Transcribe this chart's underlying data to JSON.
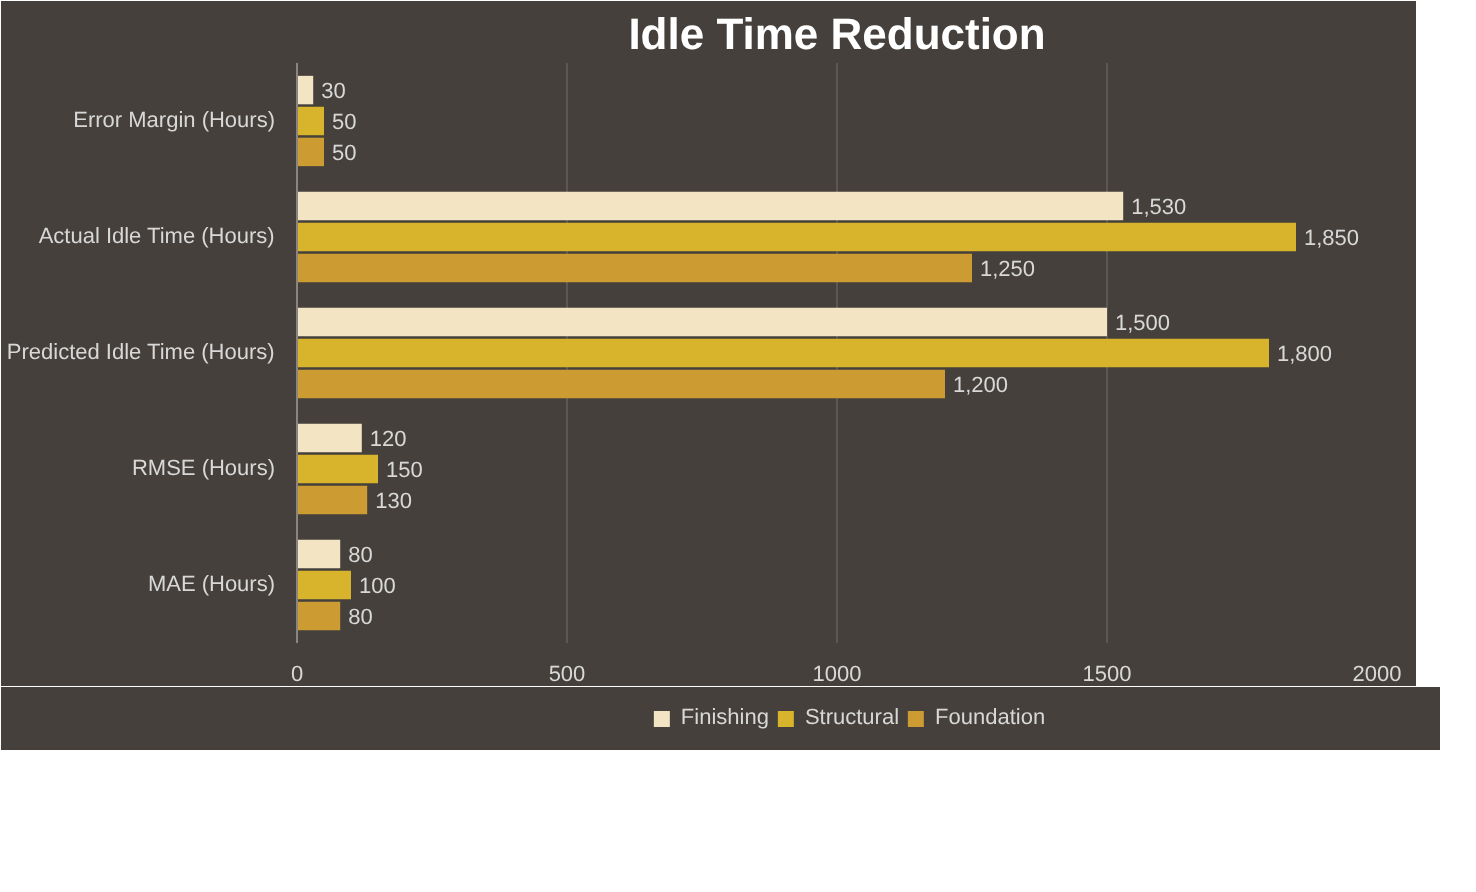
{
  "chart_data": {
    "type": "bar",
    "orientation": "horizontal",
    "title": "Idle Time Reduction",
    "categories": [
      "Error Margin (Hours)",
      "Actual Idle Time (Hours)",
      "Predicted Idle Time (Hours)",
      "RMSE (Hours)",
      "MAE (Hours)"
    ],
    "series": [
      {
        "name": "Finishing",
        "color": "#f3e4c4",
        "values": [
          30,
          1530,
          1500,
          120,
          80
        ],
        "value_labels": [
          "30",
          "1,530",
          "1,500",
          "120",
          "80"
        ]
      },
      {
        "name": "Structural",
        "color": "#d8b42c",
        "values": [
          50,
          1850,
          1800,
          150,
          100
        ],
        "value_labels": [
          "50",
          "1,850",
          "1,800",
          "150",
          "100"
        ]
      },
      {
        "name": "Foundation",
        "color": "#cc9b32",
        "values": [
          50,
          1250,
          1200,
          130,
          80
        ],
        "value_labels": [
          "50",
          "1,250",
          "1,200",
          "130",
          "80"
        ]
      }
    ],
    "xlim": [
      0,
      2000
    ],
    "xticks": [
      0,
      500,
      1000,
      1500,
      2000
    ],
    "grid": "x",
    "legend": "bottom"
  }
}
